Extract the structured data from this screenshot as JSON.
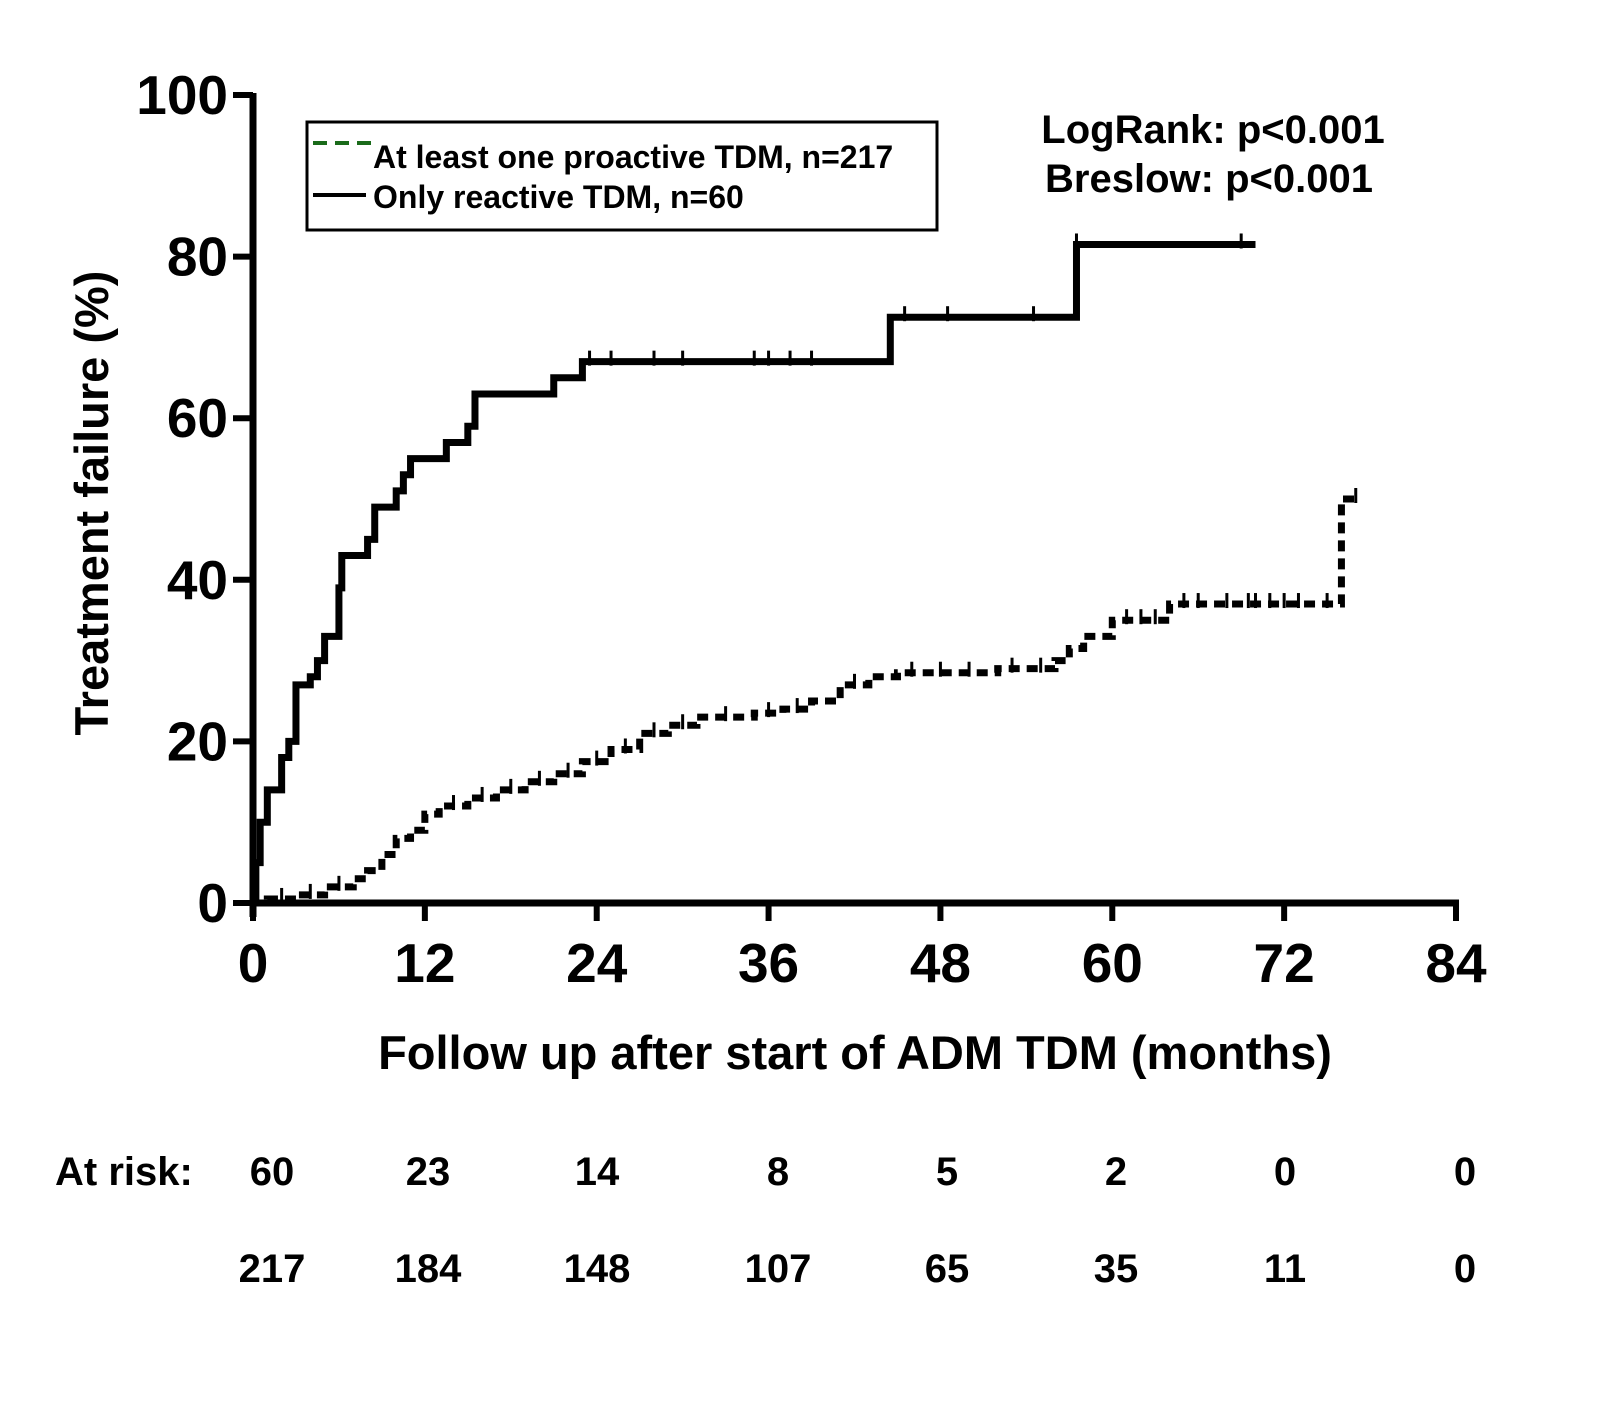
{
  "chart_data": {
    "type": "line",
    "subtype": "kaplan-meier-step",
    "xlabel": "Follow up after start of ADM TDM (months)",
    "ylabel": "Treatment failure (%)",
    "xlim": [
      0,
      84
    ],
    "ylim": [
      0,
      100
    ],
    "xticks": [
      0,
      12,
      24,
      36,
      48,
      60,
      72,
      84
    ],
    "yticks": [
      0,
      20,
      40,
      60,
      80,
      100
    ],
    "grid": false,
    "legend_position": "top-left",
    "legend": [
      {
        "label": "At least one proactive TDM, n=217",
        "style": "dashed",
        "legend_color": "#1a6b1a"
      },
      {
        "label": "Only reactive TDM, n=60",
        "style": "solid",
        "legend_color": "#000000"
      }
    ],
    "annotations": [
      "LogRank: p<0.001",
      "Breslow: p<0.001"
    ],
    "series": [
      {
        "name": "Only reactive TDM, n=60",
        "style": "solid",
        "color": "#000000",
        "points": [
          [
            0,
            0
          ],
          [
            0.2,
            5
          ],
          [
            0.5,
            10
          ],
          [
            1,
            14
          ],
          [
            2,
            18
          ],
          [
            2.5,
            20
          ],
          [
            3,
            27
          ],
          [
            4,
            28
          ],
          [
            4.5,
            30
          ],
          [
            5,
            33
          ],
          [
            6,
            39
          ],
          [
            6.2,
            43
          ],
          [
            7,
            43
          ],
          [
            8,
            45
          ],
          [
            8.5,
            49
          ],
          [
            10,
            51
          ],
          [
            10.5,
            53
          ],
          [
            11,
            55
          ],
          [
            13.5,
            57
          ],
          [
            15,
            59
          ],
          [
            15.5,
            63
          ],
          [
            21,
            65
          ],
          [
            23,
            67
          ],
          [
            44.5,
            72.5
          ],
          [
            57.5,
            81.5
          ],
          [
            70,
            81.5
          ]
        ],
        "censor_x": [
          23.5,
          25,
          28,
          30,
          35,
          36,
          37.5,
          39,
          45.5,
          48.5,
          54.5,
          57.5,
          69
        ]
      },
      {
        "name": "At least one proactive TDM, n=217",
        "style": "dashed",
        "color": "#000000",
        "points": [
          [
            0,
            0
          ],
          [
            1,
            0.5
          ],
          [
            3,
            1
          ],
          [
            5,
            2
          ],
          [
            7,
            3
          ],
          [
            8,
            4
          ],
          [
            9,
            6
          ],
          [
            10,
            8
          ],
          [
            11,
            9
          ],
          [
            12,
            11
          ],
          [
            13,
            12
          ],
          [
            15,
            13
          ],
          [
            17,
            14
          ],
          [
            19,
            15
          ],
          [
            21,
            16
          ],
          [
            23,
            17.5
          ],
          [
            25,
            19
          ],
          [
            27,
            21
          ],
          [
            29,
            22
          ],
          [
            31,
            23
          ],
          [
            35,
            23.5
          ],
          [
            37,
            24
          ],
          [
            39,
            25
          ],
          [
            41,
            27
          ],
          [
            43,
            28
          ],
          [
            45,
            28.5
          ],
          [
            52,
            29
          ],
          [
            56,
            30
          ],
          [
            57,
            31.5
          ],
          [
            58,
            33
          ],
          [
            60,
            35
          ],
          [
            64,
            37
          ],
          [
            76,
            37
          ],
          [
            76,
            50
          ],
          [
            77,
            50
          ]
        ],
        "censor_x": [
          2,
          4,
          6,
          14,
          16,
          18,
          20,
          22,
          24,
          26,
          28,
          30,
          33,
          36,
          38,
          42,
          46,
          48,
          50,
          53,
          55,
          61,
          62,
          63,
          65,
          66,
          68,
          69.5,
          70,
          71,
          72,
          73,
          75,
          77
        ]
      }
    ],
    "at_risk": {
      "label": "At risk:",
      "times": [
        0,
        12,
        24,
        36,
        48,
        60,
        72,
        84
      ],
      "rows": [
        {
          "series": "Only reactive TDM, n=60",
          "values": [
            "60",
            "23",
            "14",
            "8",
            "5",
            "2",
            "0",
            "0"
          ]
        },
        {
          "series": "At least one proactive TDM, n=217",
          "values": [
            "217",
            "184",
            "148",
            "107",
            "65",
            "35",
            "11",
            "0"
          ]
        }
      ]
    }
  }
}
